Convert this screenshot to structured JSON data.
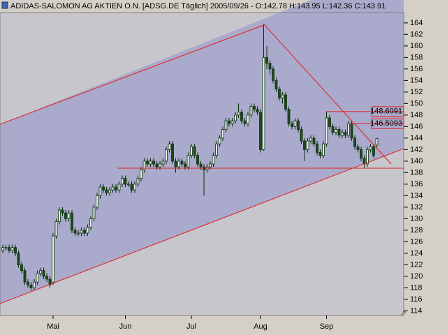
{
  "chart_data": {
    "type": "candlestick",
    "title": "ADIDAS-SALOMON AG AKTIEN O.N. [ADSG.DE  Täglich] 2005/09/26 - O:142.78 H:143.95 L:142.36 C:143.91",
    "categories": [
      null,
      null,
      null,
      null,
      null,
      null,
      null,
      null,
      null,
      null,
      null,
      null,
      null,
      null,
      null,
      null,
      "Mai",
      null,
      null,
      null,
      null,
      null,
      null,
      null,
      null,
      null,
      null,
      null,
      null,
      null,
      null,
      null,
      null,
      null,
      null,
      null,
      null,
      null,
      null,
      "Jun",
      null,
      null,
      null,
      null,
      null,
      null,
      null,
      null,
      null,
      null,
      null,
      null,
      null,
      null,
      null,
      null,
      null,
      null,
      null,
      null,
      "Jul",
      null,
      null,
      null,
      null,
      null,
      null,
      null,
      null,
      null,
      null,
      null,
      null,
      null,
      null,
      null,
      null,
      null,
      null,
      null,
      null,
      null,
      "Aug",
      null,
      null,
      null,
      null,
      null,
      null,
      null,
      null,
      null,
      null,
      null,
      null,
      null,
      null,
      null,
      null,
      null,
      null,
      null,
      null,
      "Sep",
      null,
      null,
      null,
      null,
      null,
      null,
      null,
      null,
      null,
      null,
      null,
      null,
      null,
      null,
      null,
      null
    ],
    "open": [
      124.5,
      125,
      125,
      124.5,
      125,
      124,
      122,
      121,
      119,
      118.5,
      118,
      119,
      120.5,
      121,
      120,
      119.5,
      119,
      127,
      129.5,
      131.5,
      131,
      130,
      131,
      128,
      127.5,
      127.5,
      128,
      127.5,
      128.5,
      130,
      132,
      134,
      135.5,
      135,
      134.5,
      135,
      135.5,
      135,
      136,
      137,
      136,
      136,
      135,
      136,
      137,
      138.5,
      140,
      139.5,
      140,
      139.5,
      139,
      139.5,
      140,
      142,
      143,
      140,
      139,
      140,
      139.5,
      139,
      141,
      142.5,
      141,
      139.5,
      139,
      138.5,
      139,
      139.5,
      141,
      143,
      144,
      145.5,
      147,
      146.5,
      147,
      148,
      148.5,
      147,
      146.5,
      148,
      149.5,
      149,
      148.5,
      142,
      158,
      157,
      156,
      154,
      152.5,
      151,
      151.5,
      149,
      146.5,
      146,
      147,
      145.5,
      143.5,
      142,
      143.5,
      144,
      143,
      141.5,
      141,
      143,
      147.5,
      146,
      145,
      145.5,
      144.5,
      145,
      144.5,
      146.5,
      144,
      142.5,
      142,
      140.5,
      139.5,
      142,
      142.5,
      142.78
    ],
    "high": [
      125.5,
      125.5,
      125.5,
      125.5,
      125.5,
      124.5,
      122.5,
      121.5,
      119.5,
      119,
      119.5,
      121,
      121.5,
      121.5,
      120.5,
      120,
      127.5,
      130,
      132,
      132,
      131.5,
      131.5,
      131.5,
      128.5,
      128,
      128.5,
      128.5,
      129,
      130.5,
      132.5,
      134.5,
      136,
      136,
      135.5,
      135.5,
      136,
      136,
      136.5,
      137.5,
      137.5,
      136.5,
      136.5,
      136.5,
      137.5,
      139,
      140.5,
      140.5,
      140.5,
      140.5,
      140,
      140,
      140.5,
      142.5,
      143.5,
      143.5,
      140.5,
      140.5,
      140.5,
      140,
      141.5,
      143,
      143,
      141.5,
      140,
      139.5,
      139.5,
      140,
      141.5,
      143.5,
      144.5,
      146,
      147.5,
      147.5,
      147.5,
      148.5,
      150,
      149,
      147.5,
      148.5,
      150,
      150,
      149.5,
      149,
      163.8,
      160,
      157.5,
      156.5,
      154.5,
      153,
      152,
      152,
      149.5,
      147,
      147.5,
      147.5,
      146,
      144,
      144,
      144.5,
      144.5,
      143.5,
      142,
      143.5,
      148.6,
      148,
      146.5,
      146,
      146,
      145.5,
      145.5,
      147,
      147,
      144.5,
      143,
      142.5,
      141,
      142.5,
      143,
      143,
      143.95
    ],
    "low": [
      124,
      124.5,
      124,
      124,
      123.5,
      121.5,
      120.5,
      118.5,
      118,
      117.5,
      117.5,
      118.5,
      120,
      119.5,
      119,
      118,
      118.5,
      126.5,
      129,
      130.5,
      129.5,
      129.5,
      127.5,
      127,
      127,
      127,
      127,
      127,
      128,
      129.5,
      131.5,
      133.5,
      134.5,
      134,
      134,
      134.5,
      134.5,
      134.5,
      135.5,
      135.5,
      135.5,
      134.5,
      134.5,
      135.5,
      136.5,
      138,
      139,
      139,
      139,
      138.5,
      138.5,
      139,
      139.5,
      141.5,
      139.5,
      138,
      138.5,
      139,
      138.5,
      138.5,
      140.5,
      140.5,
      139,
      138.5,
      134,
      138,
      138.5,
      139,
      140.5,
      142.5,
      143.5,
      145,
      146,
      146,
      146.5,
      147.5,
      146.5,
      146,
      146,
      147.5,
      148.5,
      148,
      141.5,
      141.8,
      156,
      155,
      153.5,
      152,
      150.5,
      150,
      148.5,
      146,
      145.5,
      145.5,
      145,
      143,
      140,
      141.5,
      143,
      142.5,
      141,
      140.5,
      140.5,
      142.5,
      145.5,
      144.5,
      144.5,
      144,
      144,
      144,
      144,
      143.5,
      142,
      141.5,
      140,
      138.8,
      139,
      141.5,
      140.5,
      142.36
    ],
    "close": [
      125,
      125,
      124.5,
      125,
      124,
      122,
      121,
      119,
      118.5,
      118,
      119,
      120.5,
      121,
      120,
      119.5,
      118.5,
      127,
      129.5,
      131.5,
      131,
      130,
      131,
      128,
      127.5,
      127.5,
      128,
      127.5,
      128.5,
      130,
      132,
      134,
      135.5,
      135,
      134.5,
      135,
      135.5,
      135,
      136,
      137,
      136,
      136,
      135,
      136,
      137,
      138.5,
      140,
      139.5,
      140,
      139.5,
      139,
      139.5,
      140,
      142,
      143,
      140,
      139,
      140,
      139.5,
      139,
      141,
      142.5,
      141,
      139.5,
      139,
      138.5,
      139,
      139.5,
      141,
      143,
      144,
      145.5,
      147,
      146.5,
      147,
      148,
      148.5,
      147,
      146.5,
      148,
      149.5,
      149,
      148.5,
      142,
      158,
      157,
      156,
      154,
      152.5,
      151,
      151.5,
      149,
      146.5,
      146,
      147,
      145.5,
      143.5,
      142,
      143.5,
      144,
      143,
      141.5,
      141,
      143,
      147.5,
      146,
      145,
      145.5,
      144.5,
      145,
      144.5,
      146.5,
      144,
      142.5,
      142,
      140.5,
      139.5,
      142,
      142.5,
      141,
      143.91
    ],
    "up_color": "#e8f0e8",
    "down_color": "#1e4a1e",
    "edge_color": "#0a300a",
    "price_levels": [
      148.6091,
      146.5093
    ],
    "level_color": "#e02020",
    "ylim": [
      113.2,
      165.8
    ],
    "yticks": [
      114,
      116,
      118,
      120,
      122,
      124,
      126,
      128,
      130,
      132,
      134,
      136,
      138,
      140,
      142,
      144,
      146,
      148,
      150,
      152,
      154,
      156,
      158,
      160,
      162,
      164
    ]
  }
}
